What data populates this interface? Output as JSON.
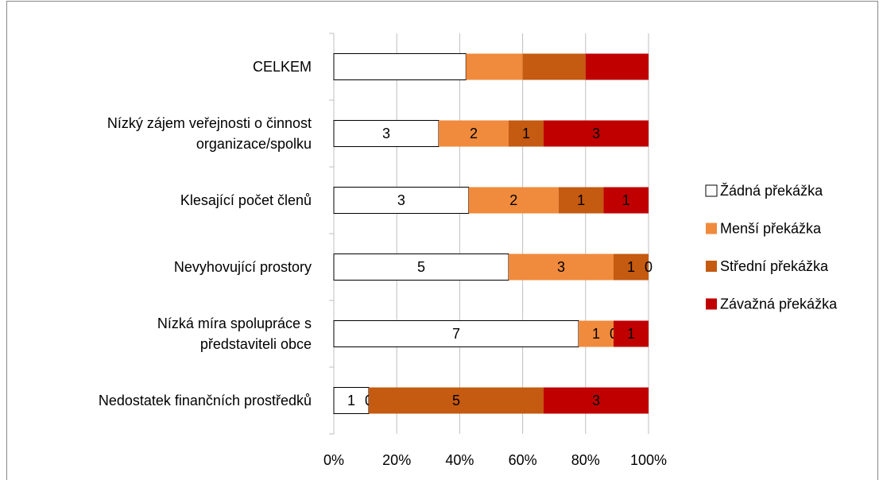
{
  "chart_data": {
    "type": "stacked_bar_100",
    "categories": [
      "CELKEM",
      "Nízký zájem veřejnosti o činnost\norganizace/spolku",
      "Klesající počet členů",
      "Nevyhovující prostory",
      "Nízká míra spolupráce s\npředstaviteli obce",
      "Nedostatek finančních prostředků"
    ],
    "series": [
      {
        "name": "Žádná překážka",
        "color": "#ffffff",
        "values": [
          42,
          3,
          3,
          5,
          7,
          1
        ],
        "value_labels": [
          null,
          "3",
          "3",
          "5",
          "7",
          "1"
        ]
      },
      {
        "name": "Menší překážka",
        "color": "#f08a3c",
        "values": [
          18,
          2,
          2,
          3,
          1,
          0
        ],
        "value_labels": [
          null,
          "2",
          "2",
          "3",
          "1",
          "0"
        ]
      },
      {
        "name": "Střední překážka",
        "color": "#c55a11",
        "values": [
          20,
          1,
          1,
          1,
          0,
          5
        ],
        "value_labels": [
          null,
          "1",
          "1",
          "1",
          "0",
          "5"
        ]
      },
      {
        "name": "Závažná překážka",
        "color": "#c00000",
        "values": [
          20,
          3,
          1,
          0,
          1,
          3
        ],
        "value_labels": [
          null,
          "3",
          "1",
          "0",
          "1",
          "3"
        ]
      }
    ],
    "xlim": [
      0,
      100
    ],
    "xticks": [
      {
        "value": 0,
        "label": "0%"
      },
      {
        "value": 20,
        "label": "20%"
      },
      {
        "value": 40,
        "label": "40%"
      },
      {
        "value": 60,
        "label": "60%"
      },
      {
        "value": 80,
        "label": "80%"
      },
      {
        "value": 100,
        "label": "100%"
      }
    ],
    "grid": true,
    "legend": "right"
  }
}
